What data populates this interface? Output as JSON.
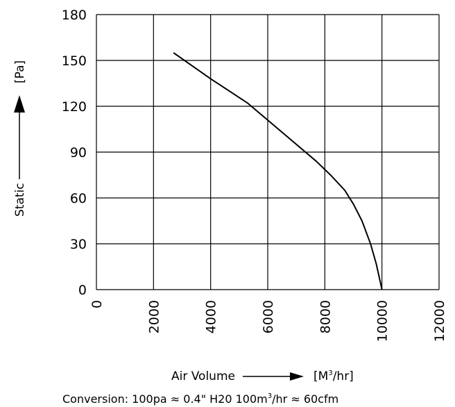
{
  "chart_data": {
    "type": "line",
    "title": "",
    "xlabel": "Air Volume",
    "xunit_prefix": "[M",
    "xunit_sup": "3",
    "xunit_suffix": "/hr]",
    "ylabel": "Static",
    "yunit": "[Pa]",
    "xlim": [
      0,
      12000
    ],
    "ylim": [
      0,
      180
    ],
    "xticks": [
      "0",
      "2000",
      "4000",
      "6000",
      "8000",
      "10000",
      "12000"
    ],
    "yticks": [
      "0",
      "30",
      "60",
      "90",
      "120",
      "150",
      "180"
    ],
    "grid": true,
    "series": [
      {
        "x": [
          2700,
          4000,
          5300,
          6500,
          7700,
          8200,
          8700,
          9000,
          9300,
          9600,
          9800,
          10000
        ],
        "y": [
          155,
          138,
          122,
          103,
          84,
          75,
          65,
          56,
          45,
          30,
          17,
          0
        ]
      }
    ],
    "conversion_note": {
      "prefix": "Conversion:  100pa ≈ 0.4\" H20   100m",
      "sup": "3",
      "suffix": "/hr ≈ 60cfm"
    },
    "colors": {
      "line": "#000000",
      "grid": "#000000",
      "background": "#ffffff"
    }
  }
}
